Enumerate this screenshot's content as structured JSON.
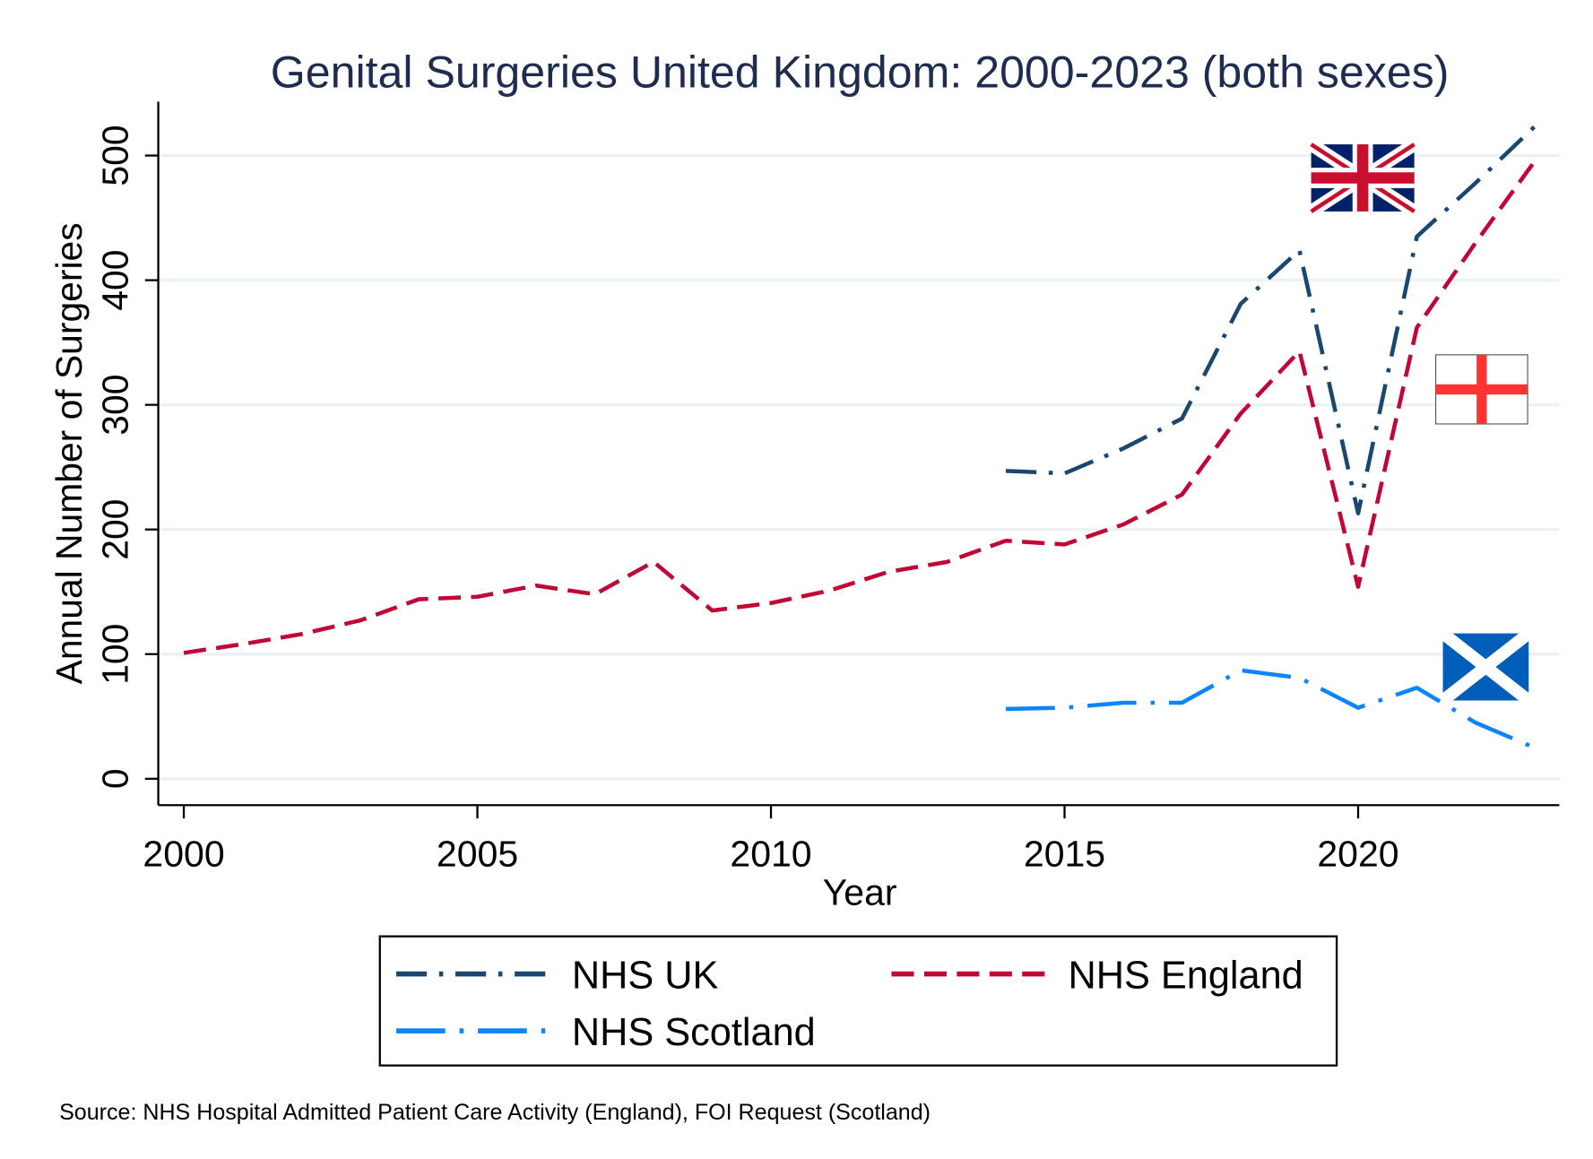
{
  "chart_data": {
    "type": "line",
    "title": "Genital Surgeries United Kingdom: 2000-2023 (both sexes)",
    "xlabel": "Year",
    "ylabel": "Annual Number of Surgeries",
    "xlim": [
      2000,
      2023
    ],
    "ylim": [
      0,
      500
    ],
    "xticks": [
      2000,
      2005,
      2010,
      2015,
      2020
    ],
    "yticks": [
      0,
      100,
      200,
      300,
      400,
      500
    ],
    "grid": true,
    "legend_position": "bottom",
    "series": [
      {
        "name": "NHS UK",
        "color": "#1a476f",
        "dash": "dash-dot",
        "x": [
          2014,
          2015,
          2016,
          2017,
          2018,
          2019,
          2020,
          2021,
          2022,
          2023
        ],
        "values": [
          247,
          245,
          265,
          289,
          381,
          424,
          213,
          435,
          478,
          523
        ]
      },
      {
        "name": "NHS England",
        "color": "#c10534",
        "dash": "dash",
        "x": [
          2000,
          2001,
          2002,
          2003,
          2004,
          2005,
          2006,
          2007,
          2008,
          2009,
          2010,
          2011,
          2012,
          2013,
          2014,
          2015,
          2016,
          2017,
          2018,
          2019,
          2020,
          2021,
          2022,
          2023
        ],
        "values": [
          101,
          108,
          116,
          127,
          144,
          146,
          155,
          148,
          174,
          135,
          141,
          151,
          166,
          174,
          191,
          188,
          204,
          228,
          293,
          343,
          154,
          362,
          430,
          495
        ]
      },
      {
        "name": "NHS Scotland",
        "color": "#0a84ff",
        "dash": "long-dash-dot",
        "x": [
          2014,
          2015,
          2016,
          2017,
          2018,
          2019,
          2020,
          2021,
          2022,
          2023
        ],
        "values": [
          56,
          57,
          61,
          61,
          87,
          81,
          57,
          73,
          45,
          25
        ]
      }
    ],
    "source": "Source: NHS Hospital Admitted Patient Care Activity (England), FOI Request (Scotland)"
  }
}
